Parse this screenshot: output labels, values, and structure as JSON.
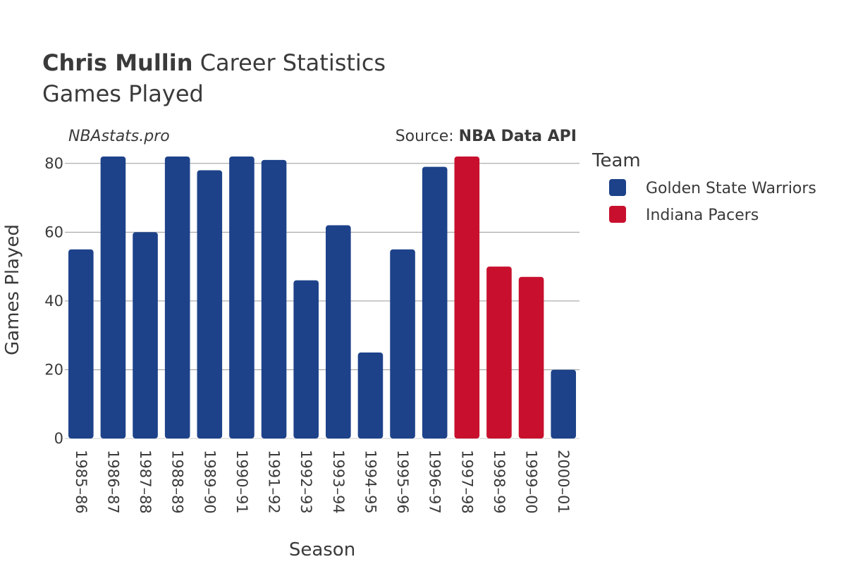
{
  "header": {
    "player_name": "Chris Mullin",
    "title_rest": " Career Statistics",
    "subtitle": "Games Played"
  },
  "watermark": "NBAstats.pro",
  "source": {
    "prefix": "Source: ",
    "name": "NBA Data API"
  },
  "legend": {
    "title": "Team",
    "items": [
      {
        "label": "Golden State Warriors",
        "color": "#1d428a"
      },
      {
        "label": "Indiana Pacers",
        "color": "#c8102e"
      }
    ]
  },
  "chart_data": {
    "type": "bar",
    "title": "Chris Mullin Career Statistics",
    "subtitle": "Games Played",
    "xlabel": "Season",
    "ylabel": "Games Played",
    "ylim": [
      0,
      82
    ],
    "yticks": [
      0,
      20,
      40,
      60,
      80
    ],
    "grid": true,
    "legend_position": "top-right",
    "categories": [
      "1985–86",
      "1986–87",
      "1987–88",
      "1988–89",
      "1989–90",
      "1990–91",
      "1991–92",
      "1992–93",
      "1993–94",
      "1994–95",
      "1995–96",
      "1996–97",
      "1997–98",
      "1998–99",
      "1999–00",
      "2000–01"
    ],
    "values": [
      55,
      82,
      60,
      82,
      78,
      82,
      81,
      46,
      62,
      25,
      55,
      79,
      82,
      50,
      47,
      20
    ],
    "teams": [
      "Golden State Warriors",
      "Golden State Warriors",
      "Golden State Warriors",
      "Golden State Warriors",
      "Golden State Warriors",
      "Golden State Warriors",
      "Golden State Warriors",
      "Golden State Warriors",
      "Golden State Warriors",
      "Golden State Warriors",
      "Golden State Warriors",
      "Golden State Warriors",
      "Indiana Pacers",
      "Indiana Pacers",
      "Indiana Pacers",
      "Golden State Warriors"
    ],
    "series": [
      {
        "name": "Golden State Warriors",
        "color": "#1d428a"
      },
      {
        "name": "Indiana Pacers",
        "color": "#c8102e"
      }
    ]
  }
}
